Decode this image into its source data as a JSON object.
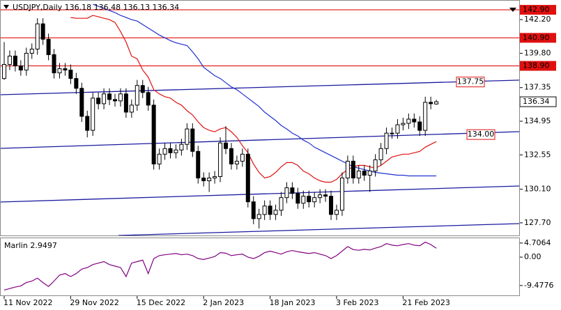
{
  "chart_data": [
    {
      "type": "candlestick",
      "title": "USDJPY,Daily  136.18 136.48 136.13 136.34",
      "categories": [
        "11 Nov 2022",
        null,
        null,
        null,
        null,
        null,
        null,
        null,
        null,
        null,
        null,
        null,
        "29 Nov 2022",
        null,
        null,
        null,
        null,
        null,
        null,
        null,
        null,
        null,
        null,
        null,
        "15 Dec 2022",
        null,
        null,
        null,
        null,
        null,
        null,
        null,
        null,
        null,
        null,
        null,
        "2 Jan 2023",
        null,
        null,
        null,
        null,
        null,
        null,
        null,
        null,
        null,
        null,
        null,
        "18 Jan 2023",
        null,
        null,
        null,
        null,
        null,
        null,
        null,
        null,
        null,
        null,
        null,
        "3 Feb 2023",
        null,
        null,
        null,
        null,
        null,
        null,
        null,
        null,
        null,
        null,
        null,
        "21 Feb 2023",
        null,
        null,
        null,
        null,
        null,
        null
      ],
      "open": [
        138.0,
        139.0,
        139.6,
        138.9,
        138.6,
        139.8,
        140.1,
        141.9,
        140.8,
        139.7,
        138.4,
        138.7,
        138.6,
        138.0,
        137.3,
        135.3,
        134.3,
        136.6,
        136.2,
        136.9,
        136.5,
        136.4,
        136.9,
        135.6,
        136.1,
        137.5,
        137.0,
        136.1,
        131.9,
        132.6,
        133.0,
        132.7,
        132.9,
        133.3,
        134.4,
        132.8,
        130.9,
        130.7,
        130.9,
        131.0,
        133.4,
        133.0,
        131.9,
        132.1,
        132.6,
        129.2,
        128.0,
        128.3,
        128.9,
        128.3,
        128.6,
        129.5,
        130.2,
        129.8,
        129.1,
        129.6,
        129.2,
        129.5,
        129.7,
        129.6,
        128.3,
        128.6,
        130.9,
        132.1,
        130.9,
        131.4,
        131.1,
        131.4,
        132.2,
        133.0,
        134.1,
        134.1,
        134.7,
        134.8,
        135.1,
        134.9,
        134.3,
        136.3,
        136.18
      ],
      "high": [
        140.6,
        140.0,
        140.0,
        139.3,
        140.2,
        140.5,
        142.3,
        142.3,
        141.2,
        140.1,
        139.1,
        139.1,
        139.0,
        138.4,
        137.7,
        135.7,
        137.0,
        137.0,
        137.3,
        137.3,
        136.9,
        137.3,
        137.3,
        136.5,
        137.9,
        137.9,
        137.4,
        136.5,
        133.0,
        133.4,
        133.4,
        133.3,
        133.7,
        134.8,
        134.8,
        133.2,
        131.3,
        131.3,
        131.4,
        133.8,
        134.6,
        133.4,
        132.5,
        133.0,
        133.0,
        129.6,
        128.7,
        129.3,
        129.3,
        129.0,
        129.9,
        130.6,
        130.6,
        130.2,
        130.0,
        130.0,
        129.9,
        130.1,
        130.1,
        130.0,
        129.0,
        131.3,
        132.5,
        132.5,
        131.8,
        131.8,
        131.8,
        132.6,
        133.4,
        134.5,
        134.5,
        135.1,
        135.2,
        135.5,
        135.5,
        135.3,
        136.7,
        136.7,
        136.48
      ],
      "low": [
        137.9,
        138.6,
        138.5,
        138.2,
        138.2,
        139.4,
        139.7,
        140.4,
        139.3,
        138.0,
        138.0,
        138.2,
        137.6,
        136.9,
        134.9,
        133.8,
        133.9,
        135.8,
        135.8,
        136.1,
        136.0,
        136.0,
        135.2,
        135.2,
        135.7,
        136.6,
        135.7,
        131.5,
        131.5,
        132.2,
        132.3,
        132.3,
        132.5,
        132.9,
        132.4,
        130.5,
        130.3,
        129.9,
        130.5,
        130.6,
        132.6,
        131.5,
        131.5,
        131.7,
        128.8,
        127.6,
        127.3,
        127.9,
        127.9,
        127.9,
        128.2,
        129.1,
        129.4,
        128.7,
        128.7,
        128.8,
        128.8,
        129.1,
        129.2,
        127.9,
        127.9,
        128.2,
        130.5,
        130.5,
        130.5,
        130.7,
        129.9,
        131.0,
        131.8,
        132.6,
        133.7,
        133.7,
        134.3,
        134.4,
        134.5,
        133.9,
        133.9,
        135.8,
        136.13
      ],
      "close": [
        139.0,
        139.6,
        138.9,
        138.6,
        139.8,
        140.1,
        141.9,
        140.8,
        139.7,
        138.4,
        138.7,
        138.6,
        138.0,
        137.3,
        135.3,
        134.3,
        136.6,
        136.2,
        136.9,
        136.5,
        136.4,
        136.9,
        135.6,
        136.1,
        137.5,
        137.0,
        136.1,
        131.9,
        132.6,
        133.0,
        132.7,
        132.9,
        133.3,
        134.4,
        132.8,
        130.9,
        130.7,
        130.9,
        131.0,
        133.4,
        133.0,
        131.9,
        132.1,
        132.6,
        129.2,
        128.0,
        128.3,
        128.9,
        128.3,
        128.6,
        129.5,
        130.2,
        129.8,
        129.1,
        129.6,
        129.2,
        129.5,
        129.7,
        129.6,
        128.3,
        128.6,
        130.9,
        132.1,
        130.9,
        131.4,
        131.1,
        131.4,
        132.2,
        133.0,
        134.1,
        134.1,
        134.7,
        134.8,
        135.1,
        134.9,
        134.3,
        136.3,
        136.2,
        136.34
      ],
      "series": [
        {
          "color": "#e01010",
          "values": [
            null,
            null,
            null,
            null,
            null,
            null,
            null,
            null,
            null,
            null,
            null,
            null,
            142.35,
            142.3,
            142.3,
            142.3,
            142.5,
            142.4,
            142.3,
            142.2,
            142.0,
            141.35,
            140.6,
            139.6,
            139.4,
            138.6,
            138.1,
            137.2,
            136.9,
            136.7,
            136.6,
            136.3,
            136.1,
            135.7,
            135.4,
            134.9,
            134.5,
            134.3,
            134.2,
            134.4,
            134.5,
            134.2,
            133.8,
            133.2,
            132.7,
            131.9,
            131.3,
            130.9,
            131.0,
            131.3,
            131.7,
            132.0,
            132.0,
            131.8,
            131.4,
            131.2,
            130.9,
            130.7,
            130.6,
            130.6,
            130.8,
            131.2,
            131.5,
            131.7,
            131.8,
            131.8,
            131.7,
            131.6,
            131.8,
            132.1,
            132.4,
            132.5,
            132.6,
            132.6,
            132.7,
            132.8,
            133.1,
            133.3,
            133.5
          ]
        },
        {
          "color": "#2030d0",
          "values": [
            null,
            null,
            null,
            null,
            null,
            null,
            null,
            null,
            null,
            null,
            null,
            null,
            null,
            null,
            null,
            null,
            143.3,
            143.15,
            143.0,
            142.85,
            142.7,
            142.5,
            142.35,
            142.2,
            142.1,
            141.85,
            141.6,
            141.35,
            141.1,
            140.9,
            140.7,
            140.55,
            140.45,
            140.35,
            139.9,
            139.4,
            138.8,
            138.5,
            138.2,
            138.0,
            137.7,
            137.4,
            137.2,
            136.9,
            136.6,
            136.3,
            136.0,
            135.6,
            135.3,
            135.0,
            134.65,
            134.4,
            134.1,
            133.9,
            133.6,
            133.4,
            133.1,
            132.9,
            132.7,
            132.5,
            132.3,
            132.1,
            131.9,
            131.7,
            131.6,
            131.5,
            131.4,
            131.3,
            131.25,
            131.2,
            131.15,
            131.1,
            131.1,
            131.05,
            131.05,
            131.05,
            131.05,
            131.05,
            131.05
          ]
        }
      ],
      "levels": [
        {
          "value": 142.9,
          "label": "142.90"
        },
        {
          "value": 140.9,
          "label": "140.90"
        },
        {
          "value": 138.9,
          "label": "138.90"
        }
      ],
      "level_color": "#e01010",
      "annotations": [
        137.75,
        {
          "value": 134,
          "label": "134.00"
        }
      ],
      "ylim": [
        126.8,
        143.6
      ],
      "yticks": [
        {
          "value": 142.2,
          "label": "142.20"
        },
        {
          "value": 139.8,
          "label": "139.80"
        },
        137.35,
        134.95,
        132.55,
        {
          "value": 130.1,
          "label": "130.10"
        },
        {
          "value": 127.7,
          "label": "127.70"
        }
      ]
    },
    {
      "type": "line",
      "title": "Marlin 2.9497",
      "color": "#800080",
      "values": [
        -11.0,
        -10.5,
        -10.0,
        -9.6,
        -8.5,
        -8.0,
        -7.0,
        -8.5,
        -9.8,
        -8.0,
        -6.0,
        -5.5,
        -6.5,
        -5.5,
        -4.0,
        -3.5,
        -2.5,
        -2.0,
        -1.5,
        -2.5,
        -3.0,
        -3.5,
        -6.5,
        -2.0,
        -1.5,
        -1.0,
        -5.5,
        -0.5,
        0.5,
        0.8,
        1.0,
        1.2,
        0.8,
        1.0,
        0.5,
        -0.5,
        -0.8,
        -0.3,
        0.2,
        1.5,
        1.3,
        0.5,
        0.8,
        1.0,
        0.0,
        -0.5,
        0.3,
        1.5,
        2.0,
        1.5,
        1.0,
        1.8,
        2.2,
        1.8,
        1.5,
        1.2,
        1.5,
        1.0,
        0.5,
        -0.5,
        0.5,
        2.0,
        3.5,
        2.5,
        2.3,
        2.6,
        2.4,
        3.0,
        3.5,
        4.5,
        4.0,
        3.8,
        4.2,
        4.5,
        4.0,
        3.8,
        5.0,
        4.2,
        2.9497
      ],
      "ylim": [
        -13,
        6.3
      ],
      "yticks": [
        4.7064,
        {
          "value": 0,
          "label": "0.00"
        },
        -9.4776
      ]
    }
  ]
}
